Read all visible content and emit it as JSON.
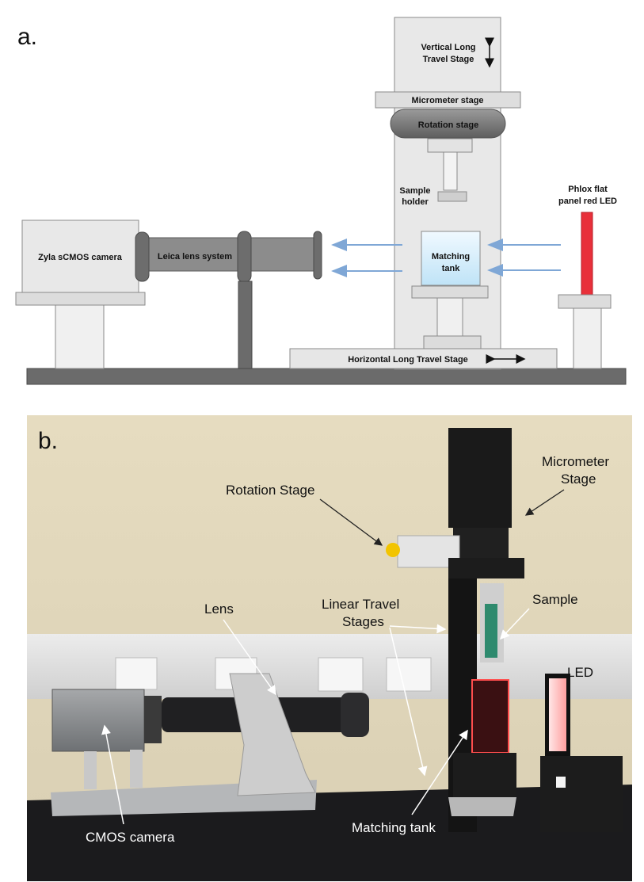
{
  "panel_a": {
    "letter": "a.",
    "labels": {
      "vertical_stage_line1": "Vertical Long",
      "vertical_stage_line2": "Travel Stage",
      "micrometer_stage": "Micrometer stage",
      "rotation_stage": "Rotation stage",
      "sample_holder_line1": "Sample",
      "sample_holder_line2": "holder",
      "led_line1": "Phlox flat",
      "led_line2": "panel red LED",
      "camera": "Zyla sCMOS camera",
      "lens": "Leica lens system",
      "tank_line1": "Matching",
      "tank_line2": "tank",
      "horizontal_stage": "Horizontal Long Travel Stage"
    },
    "colors": {
      "structure_fill": "#e6e6e6",
      "structure_stroke": "#8a8a8a",
      "dark_gray": "#6d6d6d",
      "tank_fill": "#dff1fb",
      "led_red": "#e8303a",
      "light_ray": "#7fa7d6"
    }
  },
  "panel_b": {
    "letter": "b.",
    "labels": {
      "rotation_stage": "Rotation Stage",
      "micrometer_line1": "Micrometer",
      "micrometer_line2": "Stage",
      "lens": "Lens",
      "linear_line1": "Linear Travel",
      "linear_line2": "Stages",
      "sample": "Sample",
      "led": "LED",
      "cmos_camera": "CMOS camera",
      "matching_tank": "Matching tank"
    }
  }
}
